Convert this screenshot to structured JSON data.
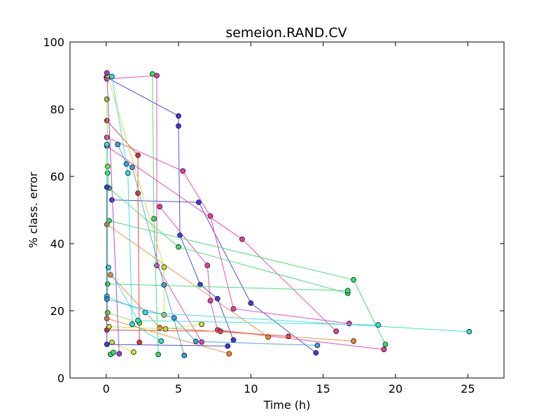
{
  "chart_data": {
    "type": "scatter",
    "title": "semeion.RAND.CV",
    "xlabel": "Time (h)",
    "ylabel": "% class. error",
    "xlim": [
      -2.5,
      27.5
    ],
    "ylim": [
      0,
      100
    ],
    "xticks": [
      0,
      5,
      10,
      15,
      20,
      25
    ],
    "yticks": [
      0,
      20,
      40,
      60,
      80,
      100
    ],
    "grid": false,
    "legend": "none",
    "connected_lines": true,
    "series": [
      {
        "color": "#3b3be0",
        "points": [
          [
            0.02,
            89.5
          ],
          [
            5.0,
            78.0
          ],
          [
            5.0,
            75.0
          ],
          [
            5.1,
            42.5
          ],
          [
            6.5,
            27.8
          ],
          [
            7.7,
            23.6
          ],
          [
            8.8,
            11.3
          ]
        ]
      },
      {
        "color": "#3b3be0",
        "points": [
          [
            0.4,
            53.0
          ],
          [
            6.4,
            52.3
          ],
          [
            10.0,
            22.3
          ],
          [
            14.5,
            7.5
          ]
        ]
      },
      {
        "color": "#e83aa8",
        "points": [
          [
            0.05,
            71.6
          ],
          [
            5.3,
            61.6
          ],
          [
            7.2,
            48.2
          ],
          [
            8.8,
            20.6
          ],
          [
            16.8,
            16.2
          ]
        ]
      },
      {
        "color": "#e83aa8",
        "points": [
          [
            0.05,
            69.0
          ],
          [
            9.4,
            41.3
          ],
          [
            15.9,
            13.9
          ]
        ]
      },
      {
        "color": "#e83aa8",
        "points": [
          [
            3.7,
            51.0
          ],
          [
            7.0,
            33.5
          ],
          [
            7.2,
            23.0
          ],
          [
            7.7,
            14.3
          ],
          [
            19.2,
            8.5
          ]
        ]
      },
      {
        "color": "#e83aa8",
        "points": [
          [
            0.05,
            89.0
          ],
          [
            3.5,
            90.0
          ],
          [
            3.5,
            33.5
          ],
          [
            6.6,
            10.7
          ]
        ]
      },
      {
        "color": "#e83030",
        "points": [
          [
            0.05,
            76.6
          ],
          [
            2.2,
            66.3
          ],
          [
            2.2,
            55.0
          ],
          [
            2.3,
            10.6
          ]
        ]
      },
      {
        "color": "#e83030",
        "points": [
          [
            0.05,
            14.3
          ],
          [
            7.9,
            13.9
          ],
          [
            12.6,
            12.4
          ]
        ]
      },
      {
        "color": "#ff7f2a",
        "points": [
          [
            0.05,
            17.7
          ],
          [
            8.5,
            7.2
          ]
        ]
      },
      {
        "color": "#ff7f2a",
        "points": [
          [
            0.3,
            30.7
          ],
          [
            3.7,
            15.0
          ],
          [
            17.1,
            11.0
          ]
        ]
      },
      {
        "color": "#ff7f2a",
        "points": [
          [
            0.05,
            45.7
          ],
          [
            11.2,
            12.2
          ]
        ]
      },
      {
        "color": "#c8e02a",
        "points": [
          [
            0.1,
            90.0
          ],
          [
            4.0,
            33.0
          ],
          [
            4.0,
            18.8
          ]
        ]
      },
      {
        "color": "#c8e02a",
        "points": [
          [
            0.4,
            10.6
          ],
          [
            1.9,
            7.7
          ]
        ]
      },
      {
        "color": "#c8e02a",
        "points": [
          [
            0.2,
            15.3
          ],
          [
            4.1,
            14.6
          ],
          [
            6.6,
            16.0
          ]
        ]
      },
      {
        "color": "#30e06a",
        "points": [
          [
            3.2,
            90.5
          ],
          [
            3.3,
            47.4
          ],
          [
            3.6,
            7.0
          ]
        ]
      },
      {
        "color": "#30e06a",
        "points": [
          [
            0.2,
            46.8
          ],
          [
            17.1,
            29.2
          ],
          [
            19.3,
            10.0
          ]
        ]
      },
      {
        "color": "#30e06a",
        "points": [
          [
            0.1,
            61.0
          ],
          [
            0.2,
            56.5
          ],
          [
            5.0,
            39.0
          ],
          [
            16.7,
            25.2
          ]
        ]
      },
      {
        "color": "#30e06a",
        "points": [
          [
            0.1,
            28.0
          ],
          [
            16.7,
            26.0
          ]
        ]
      },
      {
        "color": "#30e06a",
        "points": [
          [
            0.3,
            7.0
          ],
          [
            0.5,
            7.6
          ]
        ]
      },
      {
        "color": "#7ee02a",
        "points": [
          [
            0.05,
            83.0
          ],
          [
            0.1,
            63.0
          ],
          [
            0.1,
            19.4
          ],
          [
            2.3,
            16.4
          ]
        ]
      },
      {
        "color": "#2ae0e0",
        "points": [
          [
            0.4,
            89.7
          ],
          [
            1.5,
            61.0
          ],
          [
            1.8,
            16.0
          ],
          [
            3.8,
            11.0
          ]
        ]
      },
      {
        "color": "#2ae0e0",
        "points": [
          [
            0.05,
            69.5
          ],
          [
            0.05,
            24.3
          ],
          [
            2.7,
            19.5
          ],
          [
            25.1,
            13.8
          ]
        ]
      },
      {
        "color": "#2ae0e0",
        "points": [
          [
            0.15,
            32.9
          ],
          [
            2.2,
            17.1
          ],
          [
            18.8,
            15.8
          ]
        ]
      },
      {
        "color": "#3aa0e0",
        "points": [
          [
            0.8,
            69.5
          ],
          [
            1.4,
            63.7
          ],
          [
            1.8,
            62.7
          ],
          [
            4.0,
            27.7
          ],
          [
            5.4,
            6.7
          ]
        ]
      },
      {
        "color": "#3aa0e0",
        "points": [
          [
            0.05,
            23.5
          ],
          [
            4.7,
            17.9
          ],
          [
            6.2,
            10.9
          ],
          [
            14.6,
            9.7
          ]
        ]
      },
      {
        "color": "#3b3be0",
        "points": [
          [
            0.05,
            56.8
          ],
          [
            0.05,
            10.0
          ],
          [
            8.4,
            9.5
          ]
        ]
      },
      {
        "color": "#a03ae0",
        "points": [
          [
            0.05,
            90.8
          ],
          [
            0.9,
            7.2
          ]
        ]
      }
    ]
  }
}
